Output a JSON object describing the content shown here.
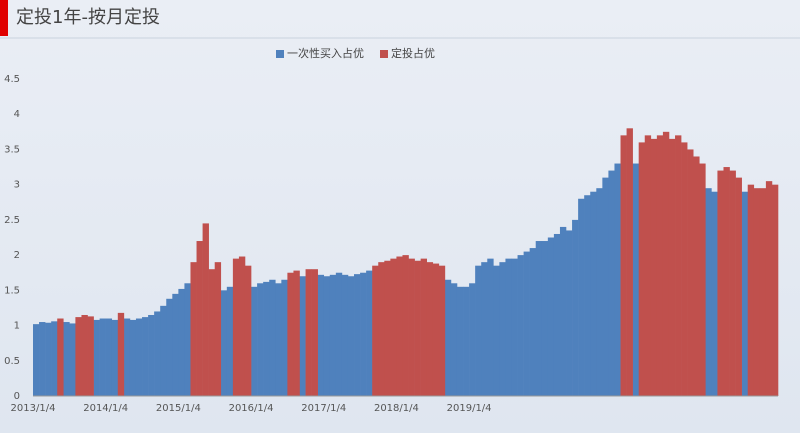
{
  "chart_data": {
    "type": "bar",
    "title": "定投1年-按月定投",
    "categories": [
      "2013/1/4",
      null,
      null,
      null,
      null,
      null,
      null,
      null,
      null,
      null,
      null,
      null,
      "2014/1/4",
      null,
      null,
      null,
      null,
      null,
      null,
      null,
      null,
      null,
      null,
      null,
      "2015/1/4",
      null,
      null,
      null,
      null,
      null,
      null,
      null,
      null,
      null,
      null,
      null,
      "2016/1/4",
      null,
      null,
      null,
      null,
      null,
      null,
      null,
      null,
      null,
      null,
      null,
      "2017/1/4",
      null,
      null,
      null,
      null,
      null,
      null,
      null,
      null,
      null,
      null,
      null,
      "2018/1/4",
      null,
      null,
      null,
      null,
      null,
      null,
      null,
      null,
      null,
      null,
      null,
      "2019/1/4",
      null,
      null,
      null,
      null,
      null,
      null,
      null,
      null,
      null,
      null,
      null,
      null,
      null,
      null,
      null,
      null,
      null,
      null,
      null,
      null,
      null,
      null,
      null,
      null,
      null,
      null,
      null,
      null,
      null,
      null,
      null,
      null,
      null,
      null,
      null,
      null,
      null,
      null,
      null,
      null,
      null,
      null,
      null,
      null,
      null,
      null,
      null,
      null,
      null,
      null
    ],
    "series": [
      {
        "name": "一次性买入占优",
        "color": "#4f81bd",
        "values": [
          1.02,
          1.05,
          1.04,
          1.06,
          null,
          1.05,
          1.03,
          null,
          null,
          null,
          1.08,
          1.1,
          1.1,
          1.08,
          null,
          1.1,
          1.08,
          1.1,
          1.12,
          1.15,
          1.2,
          1.28,
          1.38,
          1.45,
          1.52,
          1.6,
          null,
          null,
          null,
          null,
          null,
          1.5,
          1.55,
          null,
          null,
          null,
          1.55,
          1.6,
          1.62,
          1.65,
          1.6,
          1.65,
          null,
          null,
          1.7,
          null,
          null,
          1.72,
          1.7,
          1.72,
          1.75,
          1.72,
          1.7,
          1.73,
          1.75,
          1.78,
          null,
          null,
          null,
          null,
          null,
          null,
          null,
          null,
          null,
          null,
          null,
          null,
          1.65,
          1.6,
          1.55,
          1.55,
          1.6,
          1.85,
          1.9,
          1.95,
          1.85,
          1.9,
          1.95,
          1.95,
          2.0,
          2.05,
          2.1,
          2.2,
          2.2,
          2.25,
          2.3,
          2.4,
          2.35,
          2.5,
          2.8,
          2.85,
          2.9,
          2.95,
          3.1,
          3.2,
          3.3,
          null,
          null,
          3.3,
          null,
          null,
          null,
          null,
          null,
          null,
          null,
          null,
          null,
          null,
          null,
          2.95,
          2.9,
          null,
          null,
          null,
          null,
          2.9,
          null,
          null,
          null,
          null,
          null
        ]
      },
      {
        "name": "定投占优",
        "color": "#c0504d",
        "values": [
          null,
          null,
          null,
          null,
          1.1,
          null,
          null,
          1.12,
          1.15,
          1.13,
          null,
          null,
          null,
          null,
          1.18,
          null,
          null,
          null,
          null,
          null,
          null,
          null,
          null,
          null,
          null,
          null,
          1.9,
          2.2,
          2.45,
          1.8,
          1.9,
          null,
          null,
          1.95,
          1.98,
          1.85,
          null,
          null,
          null,
          null,
          null,
          null,
          1.75,
          1.78,
          null,
          1.8,
          1.8,
          null,
          null,
          null,
          null,
          null,
          null,
          null,
          null,
          null,
          1.85,
          1.9,
          1.92,
          1.95,
          1.98,
          2.0,
          1.95,
          1.92,
          1.95,
          1.9,
          1.88,
          1.85,
          null,
          null,
          null,
          null,
          null,
          null,
          null,
          null,
          null,
          null,
          null,
          null,
          null,
          null,
          null,
          null,
          null,
          null,
          null,
          null,
          null,
          null,
          null,
          null,
          null,
          null,
          null,
          null,
          null,
          3.7,
          3.8,
          null,
          3.6,
          3.7,
          3.65,
          3.7,
          3.75,
          3.65,
          3.7,
          3.6,
          3.5,
          3.4,
          3.3,
          null,
          null,
          3.2,
          3.25,
          3.2,
          3.1,
          null,
          3.0,
          2.95,
          2.95,
          3.05,
          3.0
        ]
      }
    ],
    "ylim": [
      0,
      4.5
    ],
    "yticks": [
      0,
      0.5,
      1,
      1.5,
      2,
      2.5,
      3,
      3.5,
      4,
      4.5
    ],
    "grid": false
  }
}
